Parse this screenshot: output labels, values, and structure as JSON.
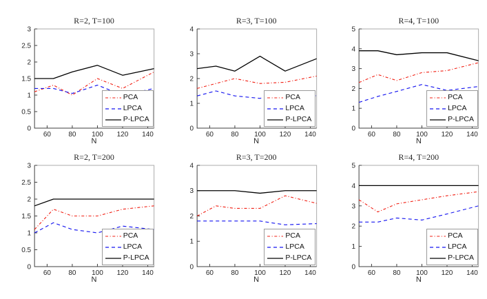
{
  "figure": {
    "background": "#ffffff",
    "axis_color_main": "#3f3f3f",
    "axis_color_box": "#ababab",
    "tick_label_color": "#262626"
  },
  "legend": {
    "position": "bottom-right",
    "border_color": "#9a9a9a",
    "entries": [
      {
        "label": "PCA",
        "color": "#f11c10",
        "style": "dashdot",
        "width": 1.1
      },
      {
        "label": "LPCA",
        "color": "#1414f0",
        "style": "dashed",
        "width": 1.15
      },
      {
        "label": "P-LPCA",
        "color": "#000000",
        "style": "solid",
        "width": 1.3
      }
    ]
  },
  "chart_data": [
    {
      "type": "line",
      "title": "R=2, T=100",
      "xlabel": "N",
      "xlim": [
        50,
        145
      ],
      "ylim": [
        0,
        3
      ],
      "xticks": [
        60,
        80,
        100,
        120,
        140
      ],
      "yticks": [
        0,
        0.5,
        1,
        1.5,
        2,
        2.5,
        3
      ],
      "x": [
        50,
        65,
        80,
        100,
        120,
        145
      ],
      "series": [
        {
          "name": "PCA",
          "values": [
            1.1,
            1.3,
            1.0,
            1.5,
            1.2,
            1.7
          ]
        },
        {
          "name": "LPCA",
          "values": [
            1.2,
            1.2,
            1.05,
            1.3,
            1.0,
            1.2
          ]
        },
        {
          "name": "P-LPCA",
          "values": [
            1.5,
            1.5,
            1.7,
            1.9,
            1.6,
            1.8
          ]
        }
      ]
    },
    {
      "type": "line",
      "title": "R=3, T=100",
      "xlabel": "N",
      "xlim": [
        50,
        145
      ],
      "ylim": [
        0,
        4
      ],
      "xticks": [
        60,
        80,
        100,
        120,
        140
      ],
      "yticks": [
        0,
        1,
        2,
        3,
        4
      ],
      "x": [
        50,
        65,
        80,
        100,
        120,
        145
      ],
      "series": [
        {
          "name": "PCA",
          "values": [
            1.6,
            1.8,
            2.0,
            1.8,
            1.85,
            2.1
          ]
        },
        {
          "name": "LPCA",
          "values": [
            1.3,
            1.5,
            1.3,
            1.2,
            1.5,
            1.3
          ]
        },
        {
          "name": "P-LPCA",
          "values": [
            2.4,
            2.5,
            2.3,
            2.9,
            2.3,
            2.8
          ]
        }
      ]
    },
    {
      "type": "line",
      "title": "R=4, T=100",
      "xlabel": "N",
      "xlim": [
        50,
        145
      ],
      "ylim": [
        0,
        5
      ],
      "xticks": [
        60,
        80,
        100,
        120,
        140
      ],
      "yticks": [
        0,
        1,
        2,
        3,
        4,
        5
      ],
      "x": [
        50,
        65,
        80,
        100,
        120,
        145
      ],
      "series": [
        {
          "name": "PCA",
          "values": [
            2.3,
            2.7,
            2.4,
            2.8,
            2.9,
            3.3
          ]
        },
        {
          "name": "LPCA",
          "values": [
            1.3,
            1.6,
            1.85,
            2.2,
            1.9,
            2.1
          ]
        },
        {
          "name": "P-LPCA",
          "values": [
            3.9,
            3.9,
            3.7,
            3.8,
            3.8,
            3.4
          ]
        }
      ]
    },
    {
      "type": "line",
      "title": "R=2, T=200",
      "xlabel": "N",
      "xlim": [
        50,
        145
      ],
      "ylim": [
        0,
        3
      ],
      "xticks": [
        60,
        80,
        100,
        120,
        140
      ],
      "yticks": [
        0,
        0.5,
        1,
        1.5,
        2,
        2.5,
        3
      ],
      "x": [
        50,
        65,
        80,
        100,
        120,
        145
      ],
      "series": [
        {
          "name": "PCA",
          "values": [
            1.1,
            1.7,
            1.5,
            1.5,
            1.7,
            1.8
          ]
        },
        {
          "name": "LPCA",
          "values": [
            1.0,
            1.3,
            1.1,
            1.0,
            1.2,
            1.1
          ]
        },
        {
          "name": "P-LPCA",
          "values": [
            1.8,
            2.0,
            2.0,
            2.0,
            2.0,
            2.0
          ]
        }
      ]
    },
    {
      "type": "line",
      "title": "R=3, T=200",
      "xlabel": "N",
      "xlim": [
        50,
        145
      ],
      "ylim": [
        0,
        4
      ],
      "xticks": [
        60,
        80,
        100,
        120,
        140
      ],
      "yticks": [
        0,
        1,
        2,
        3,
        4
      ],
      "x": [
        50,
        65,
        80,
        100,
        120,
        145
      ],
      "series": [
        {
          "name": "PCA",
          "values": [
            2.0,
            2.4,
            2.3,
            2.3,
            2.8,
            2.5
          ]
        },
        {
          "name": "LPCA",
          "values": [
            1.8,
            1.8,
            1.8,
            1.8,
            1.65,
            1.7
          ]
        },
        {
          "name": "P-LPCA",
          "values": [
            3.0,
            3.0,
            3.0,
            2.9,
            3.0,
            3.0
          ]
        }
      ]
    },
    {
      "type": "line",
      "title": "R=4, T=200",
      "xlabel": "N",
      "xlim": [
        50,
        145
      ],
      "ylim": [
        0,
        5
      ],
      "xticks": [
        60,
        80,
        100,
        120,
        140
      ],
      "yticks": [
        0,
        1,
        2,
        3,
        4,
        5
      ],
      "x": [
        50,
        65,
        80,
        100,
        120,
        145
      ],
      "series": [
        {
          "name": "PCA",
          "values": [
            3.3,
            2.7,
            3.1,
            3.3,
            3.5,
            3.7
          ]
        },
        {
          "name": "LPCA",
          "values": [
            2.2,
            2.2,
            2.4,
            2.3,
            2.6,
            3.0
          ]
        },
        {
          "name": "P-LPCA",
          "values": [
            4.0,
            4.0,
            4.0,
            4.0,
            4.0,
            4.0
          ]
        }
      ]
    }
  ]
}
